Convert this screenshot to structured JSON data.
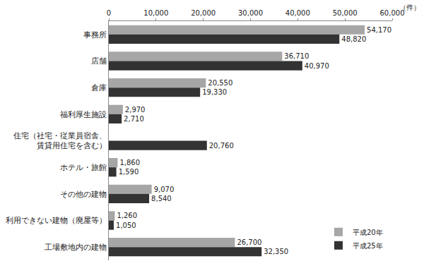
{
  "chart_data": {
    "type": "bar",
    "orientation": "horizontal",
    "categories": [
      "事務所",
      "店舗",
      "倉庫",
      "福利厚生施設",
      "住宅（社宅・従業員宿舎、\n賃貸用住宅を含む）",
      "ホテル・旅館",
      "その他の建物",
      "利用できない建物（廃屋等）",
      "工場敷地内の建物"
    ],
    "series": [
      {
        "name": "平成20年",
        "color": "#a6a6a6",
        "values": [
          54170,
          36710,
          20550,
          2970,
          null,
          1860,
          9070,
          1260,
          26700
        ],
        "value_labels": [
          "54,170",
          "36,710",
          "20,550",
          "2,970",
          null,
          "1,860",
          "9,070",
          "1,260",
          "26,700"
        ]
      },
      {
        "name": "平成25年",
        "color": "#333333",
        "values": [
          48820,
          40970,
          19330,
          2710,
          20760,
          1590,
          8540,
          1050,
          32350
        ],
        "value_labels": [
          "48,820",
          "40,970",
          "19,330",
          "2,710",
          "20,760",
          "1,590",
          "8,540",
          "1,050",
          "32,350"
        ]
      }
    ],
    "xlim": [
      0,
      60000
    ],
    "xticks": [
      0,
      {
        "value": 10000,
        "label": "10,000"
      },
      {
        "value": 20000,
        "label": "20,000"
      },
      {
        "value": 30000,
        "label": "30,000"
      },
      {
        "value": 40000,
        "label": "40,000"
      },
      {
        "value": 50000,
        "label": "50,000"
      },
      {
        "value": 60000,
        "label": "60,000"
      }
    ],
    "annotations": [
      {
        "text": "（件）"
      }
    ],
    "data_labels": true,
    "grid": false,
    "legend": "lower right"
  }
}
